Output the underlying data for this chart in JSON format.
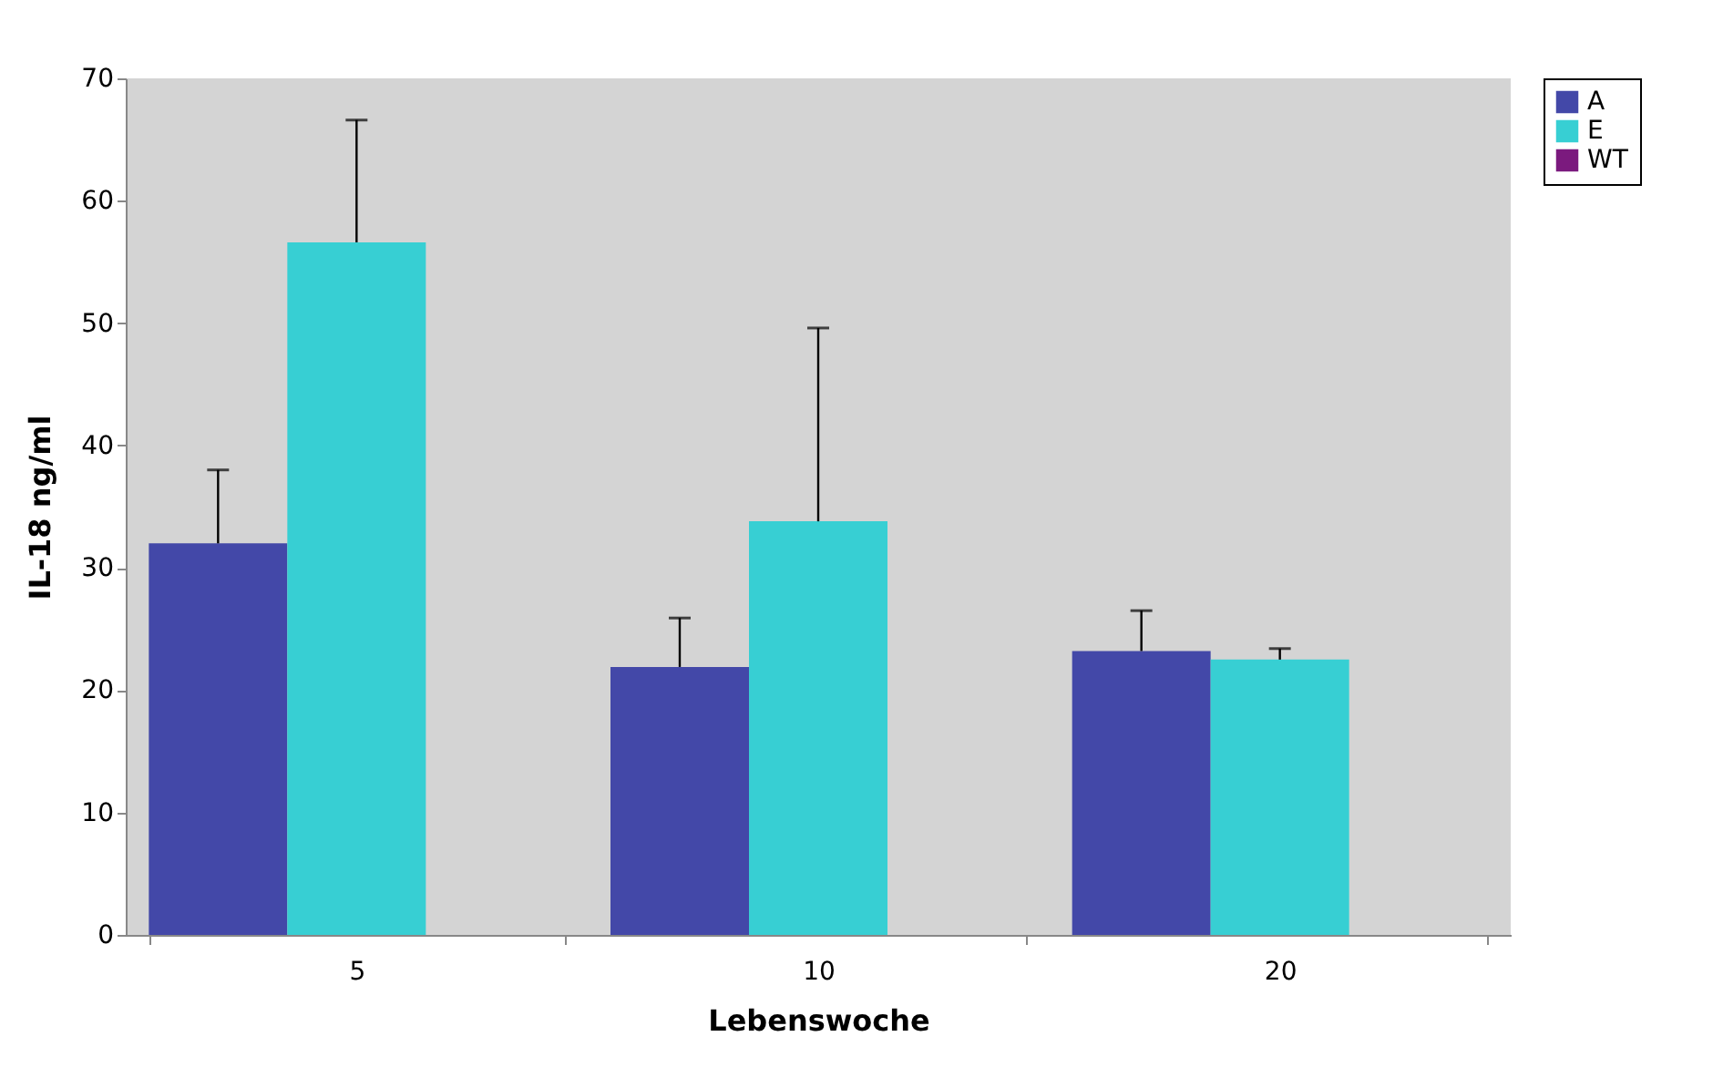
{
  "chart_data": {
    "type": "bar",
    "xlabel": "Lebenswoche",
    "ylabel": "IL-18 ng/ml",
    "categories": [
      "5",
      "10",
      "20"
    ],
    "series": [
      {
        "name": "A",
        "color": "#4348a8",
        "values": [
          32.0,
          21.9,
          23.2
        ],
        "errors": [
          [
            32.0,
            38.0
          ],
          [
            21.9,
            25.9
          ],
          [
            23.2,
            26.5
          ]
        ]
      },
      {
        "name": "E",
        "color": "#37cfd3",
        "values": [
          56.6,
          33.8,
          22.5
        ],
        "errors": [
          [
            56.6,
            66.6
          ],
          [
            33.8,
            49.6
          ],
          [
            22.5,
            23.4
          ]
        ]
      },
      {
        "name": "WT",
        "color": "#7b1a7e",
        "values": [
          0,
          0,
          0
        ]
      }
    ],
    "ylim": [
      0,
      70
    ],
    "yticks": [
      0,
      10,
      20,
      30,
      40,
      50,
      60,
      70
    ],
    "grid": false,
    "legend": "right"
  }
}
